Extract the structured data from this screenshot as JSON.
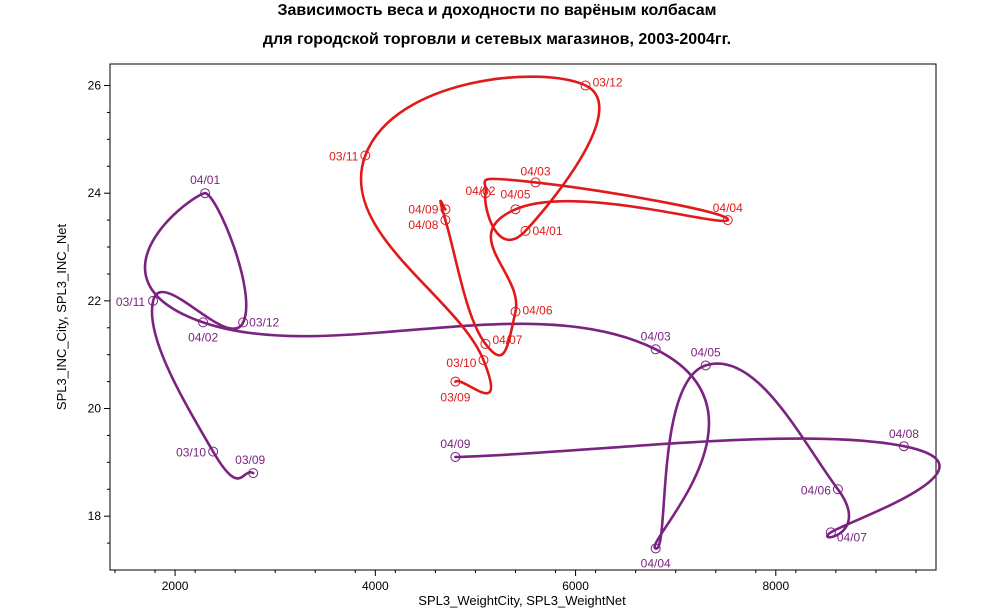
{
  "chart_data": {
    "type": "line",
    "title": [
      "Зависимость веса и доходности по варёным колбасам",
      "для городской торговли и сетевых магазинов, 2003-2004гг."
    ],
    "xlabel": "SPL3_WeightCity, SPL3_WeightNet",
    "ylabel": "SPL3_INC_City, SPL3_INC_Net",
    "xlim": [
      1350,
      9600
    ],
    "ylim": [
      17,
      26.4
    ],
    "xticks": [
      2000,
      4000,
      6000,
      8000
    ],
    "yticks": [
      18,
      20,
      22,
      24,
      26
    ],
    "grid": false,
    "series": [
      {
        "color": "#7b2380",
        "points": [
          {
            "label": "03/09",
            "x": 2780,
            "y": 18.8
          },
          {
            "label": "03/10",
            "x": 2380,
            "y": 19.2
          },
          {
            "label": "03/11",
            "x": 1780,
            "y": 22.0
          },
          {
            "label": "03/12",
            "x": 2680,
            "y": 21.6
          },
          {
            "label": "04/01",
            "x": 2300,
            "y": 24.0
          },
          {
            "label": "04/02",
            "x": 2280,
            "y": 21.6
          },
          {
            "label": "04/03",
            "x": 6800,
            "y": 21.1
          },
          {
            "label": "04/04",
            "x": 6800,
            "y": 17.4
          },
          {
            "label": "04/05",
            "x": 7300,
            "y": 20.8
          },
          {
            "label": "04/06",
            "x": 8620,
            "y": 18.5
          },
          {
            "label": "04/07",
            "x": 8550,
            "y": 17.7
          },
          {
            "label": "04/08",
            "x": 9280,
            "y": 19.3
          },
          {
            "label": "04/09",
            "x": 4800,
            "y": 19.1
          }
        ]
      },
      {
        "color": "#e01a1a",
        "points": [
          {
            "label": "03/09",
            "x": 4800,
            "y": 20.5
          },
          {
            "label": "03/10",
            "x": 5080,
            "y": 20.9
          },
          {
            "label": "03/11",
            "x": 3900,
            "y": 24.7
          },
          {
            "label": "03/12",
            "x": 6100,
            "y": 26.0
          },
          {
            "label": "04/01",
            "x": 5500,
            "y": 23.3
          },
          {
            "label": "04/02",
            "x": 5100,
            "y": 24.0
          },
          {
            "label": "04/03",
            "x": 5600,
            "y": 24.2
          },
          {
            "label": "04/04",
            "x": 7520,
            "y": 23.5
          },
          {
            "label": "04/05",
            "x": 5400,
            "y": 23.7
          },
          {
            "label": "04/06",
            "x": 5400,
            "y": 21.8
          },
          {
            "label": "04/07",
            "x": 5100,
            "y": 21.2
          },
          {
            "label": "04/08",
            "x": 4700,
            "y": 23.5
          },
          {
            "label": "04/09",
            "x": 4700,
            "y": 23.7
          }
        ]
      }
    ]
  }
}
